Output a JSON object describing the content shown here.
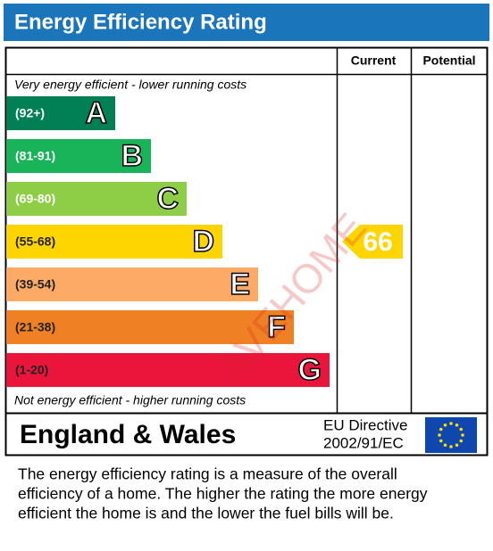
{
  "header": {
    "title": "Energy Efficiency Rating"
  },
  "columns": {
    "current": "Current",
    "potential": "Potential"
  },
  "top_note": "Very energy efficient - lower running costs",
  "bottom_note": "Not energy efficient - higher running costs",
  "bands": [
    {
      "range": "(92+)",
      "letter": "A",
      "color": "#008054",
      "text_color": "#ffffff"
    },
    {
      "range": "(81-91)",
      "letter": "B",
      "color": "#19b459",
      "text_color": "#ffffff"
    },
    {
      "range": "(69-80)",
      "letter": "C",
      "color": "#8dce46",
      "text_color": "#ffffff"
    },
    {
      "range": "(55-68)",
      "letter": "D",
      "color": "#ffd500",
      "text_color": "#222222"
    },
    {
      "range": "(39-54)",
      "letter": "E",
      "color": "#fcaa65",
      "text_color": "#222222"
    },
    {
      "range": "(21-38)",
      "letter": "F",
      "color": "#ef8023",
      "text_color": "#222222"
    },
    {
      "range": "(1-20)",
      "letter": "G",
      "color": "#e9153b",
      "text_color": "#222222"
    }
  ],
  "current": {
    "value": 66,
    "color": "#ffd500"
  },
  "watermark": "AVEHOME",
  "footer": {
    "region": "England & Wales",
    "directive_line1": "EU Directive",
    "directive_line2": "2002/91/EC"
  },
  "description": [
    "The energy efficiency rating is a measure of the overall",
    "efficiency of a home.  The higher the rating the more energy",
    "efficient the home is and the lower the fuel bills will be."
  ]
}
